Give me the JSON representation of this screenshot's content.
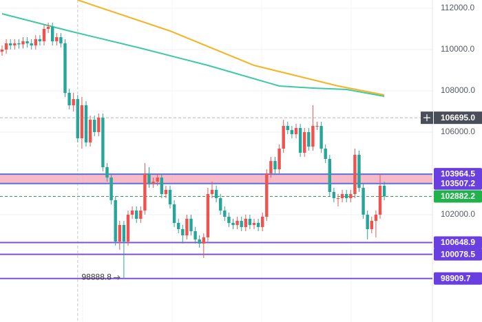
{
  "chart_data": {
    "type": "candlestick",
    "ylim": [
      96800,
      112400
    ],
    "yticks": [
      {
        "value": 112000,
        "label": "112000.0"
      },
      {
        "value": 110000,
        "label": "110000.0"
      },
      {
        "value": 108000,
        "label": "108000.0"
      },
      {
        "value": 106000,
        "label": "106000.0"
      },
      {
        "value": 102000,
        "label": "102000.0"
      }
    ],
    "grid": true,
    "up_color": "#ef5350",
    "down_color": "#26a69a",
    "open": [
      109900,
      110000,
      110300,
      110200,
      110300,
      110250,
      110400,
      110300,
      110200,
      110500,
      110400,
      111000,
      111100,
      110400,
      110600,
      110300,
      107900,
      107300,
      107600,
      105700,
      107300,
      105500,
      106600,
      106000,
      106700,
      104300,
      103800,
      102700,
      100700,
      101500,
      100700,
      102000,
      102200,
      101800,
      102200,
      104000,
      103500,
      103600,
      103800,
      103000,
      103200,
      102500,
      101600,
      101300,
      101000,
      101800,
      101200,
      100800,
      100600,
      100900,
      103000,
      103200,
      102800,
      102200,
      101900,
      101600,
      101500,
      101700,
      101400,
      101800,
      101500,
      101600,
      101400,
      101900,
      104000,
      104600,
      104200,
      105200,
      106300,
      106100,
      105900,
      106200,
      105000,
      106000,
      105300,
      106300,
      106300,
      105200,
      104700,
      103100,
      102800,
      102800,
      103000,
      102800,
      103000,
      104900,
      103300,
      102000,
      101300,
      101700,
      102000,
      103400
    ],
    "high": [
      110200,
      110500,
      110500,
      110500,
      110500,
      110600,
      110600,
      110500,
      110700,
      110700,
      111200,
      111300,
      111300,
      110800,
      110800,
      110500,
      108100,
      107900,
      107800,
      107700,
      107500,
      106800,
      106800,
      106900,
      106900,
      104500,
      104000,
      102900,
      101700,
      101700,
      102200,
      102400,
      102400,
      102400,
      104500,
      104300,
      103800,
      104000,
      104000,
      103400,
      103400,
      102700,
      101800,
      101500,
      102000,
      102000,
      101400,
      101000,
      101100,
      103300,
      103600,
      103400,
      103000,
      102400,
      102100,
      101800,
      101900,
      101900,
      102000,
      102000,
      101800,
      101800,
      102100,
      104200,
      104800,
      104800,
      105400,
      106600,
      106500,
      106300,
      106400,
      106400,
      106200,
      106200,
      107300,
      106500,
      106500,
      105400,
      104900,
      103300,
      103000,
      103200,
      103200,
      103200,
      105200,
      105100,
      103500,
      102200,
      101900,
      102200,
      104000,
      103600
    ],
    "low": [
      109700,
      109800,
      110000,
      110000,
      110050,
      110050,
      110100,
      110000,
      110000,
      110200,
      110200,
      110800,
      110200,
      110200,
      110100,
      107700,
      107100,
      107000,
      105500,
      105200,
      105300,
      105300,
      105800,
      105800,
      104100,
      103600,
      102500,
      100500,
      100300,
      98888.8,
      100500,
      101800,
      101600,
      101600,
      102000,
      103300,
      103300,
      103400,
      102800,
      102800,
      102300,
      101400,
      101100,
      100600,
      100800,
      101000,
      100600,
      100400,
      99900,
      100700,
      102800,
      102600,
      102000,
      101700,
      101400,
      101300,
      101300,
      101200,
      101200,
      101300,
      101300,
      101200,
      101200,
      101700,
      103800,
      104000,
      104000,
      105000,
      105900,
      105700,
      105700,
      104800,
      104800,
      105100,
      105100,
      106100,
      105000,
      104500,
      102900,
      102600,
      102400,
      102600,
      102600,
      102600,
      102800,
      103100,
      101800,
      100800,
      101100,
      100900,
      101800,
      102700
    ],
    "close": [
      110000,
      110300,
      110200,
      110300,
      110250,
      110400,
      110300,
      110200,
      110500,
      110400,
      111000,
      111100,
      110400,
      110600,
      110300,
      107900,
      107300,
      107600,
      105700,
      107300,
      105500,
      106600,
      106000,
      106700,
      104300,
      103800,
      102700,
      100700,
      101500,
      100700,
      102000,
      102200,
      101800,
      102200,
      104000,
      103500,
      103600,
      103800,
      103000,
      103200,
      102500,
      101600,
      101300,
      101000,
      101800,
      101200,
      100800,
      100600,
      100900,
      103000,
      103200,
      102800,
      102200,
      101900,
      101600,
      101500,
      101700,
      101400,
      101800,
      101500,
      101600,
      101400,
      101900,
      104000,
      104600,
      104200,
      105200,
      106300,
      106100,
      105900,
      106200,
      105000,
      106000,
      105300,
      106300,
      106300,
      105200,
      104700,
      103100,
      102800,
      102800,
      103000,
      102800,
      103000,
      104900,
      103300,
      102000,
      101300,
      101700,
      102000,
      103400,
      102882.2
    ],
    "lines": [
      {
        "color": "#f5b324",
        "x": [
          18,
          40,
          60,
          80,
          91
        ],
        "values": [
          112400,
          110900,
          109233,
          108233,
          107800
        ]
      },
      {
        "color": "#3cc9a4",
        "x": [
          0,
          16,
          33,
          49,
          66,
          74,
          82,
          91
        ],
        "values": [
          111733,
          110900,
          110067,
          109233,
          108233,
          108133,
          108067,
          107733
        ]
      }
    ],
    "band": {
      "color": "#f5a3b3",
      "from": 103507.2,
      "to": 103964.5
    },
    "levels": [
      {
        "value": 103964.5,
        "label": "103964.5",
        "line_color": "#5b6fe0",
        "label_color": "#6a3fe0",
        "style": "solid"
      },
      {
        "value": 103507.2,
        "label": "103507.2",
        "line_color": "#5b6fe0",
        "label_color": "#6a3fe0",
        "style": "solid"
      },
      {
        "value": 102882.2,
        "label": "102882.2",
        "line_color": "#2e9e4a",
        "label_color": "#22b24c",
        "style": "dashed"
      },
      {
        "value": 100648.9,
        "label": "100648.9",
        "line_color": "#7e4fd8",
        "label_color": "#6a3fe0",
        "style": "solid"
      },
      {
        "value": 100078.5,
        "label": "100078.5",
        "line_color": "#7e4fd8",
        "label_color": "#6a3fe0",
        "style": "solid"
      },
      {
        "value": 98909.7,
        "label": "98909.7",
        "line_color": "#7e4fd8",
        "label_color": "#6a3fe0",
        "style": "solid"
      }
    ],
    "crosshair": {
      "x_index": 18,
      "value": 106695,
      "label": "106695.0"
    },
    "annotation": {
      "text": "98888.8",
      "index": 29
    }
  }
}
